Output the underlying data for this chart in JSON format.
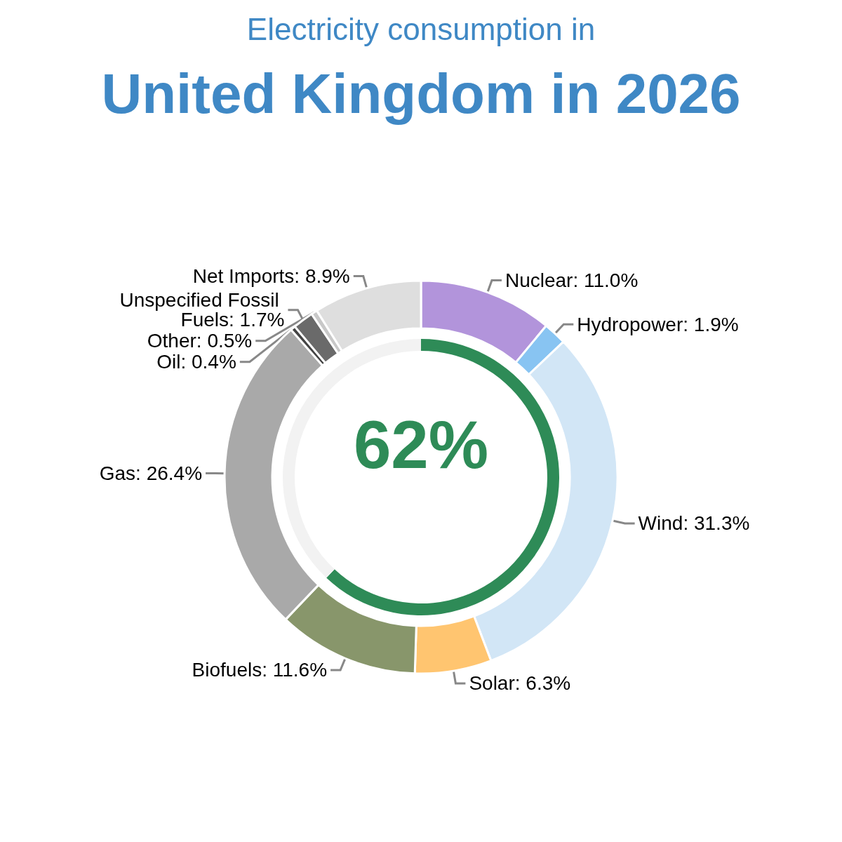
{
  "chart_data": [
    {
      "type": "donut",
      "subtitle": "Electricity consumption in",
      "title": "United Kingdom in 2026",
      "categories": [
        "Nuclear",
        "Hydropower",
        "Wind",
        "Solar",
        "Biofuels",
        "Gas",
        "Oil",
        "Unspecified Fossil Fuels",
        "Other",
        "Net Imports"
      ],
      "values": [
        11.0,
        1.9,
        31.3,
        6.3,
        11.6,
        26.4,
        0.4,
        1.7,
        0.5,
        8.9
      ],
      "value_labels": [
        "11.0%",
        "1.9%",
        "31.3%",
        "6.3%",
        "11.6%",
        "26.4%",
        "0.4%",
        "1.7%",
        "0.5%",
        "8.9%"
      ],
      "colors": [
        "#b294db",
        "#88c4f2",
        "#d2e6f6",
        "#ffc570",
        "#88966b",
        "#a9a9a9",
        "#444444",
        "#6a6a6a",
        "#c8c8c8",
        "#dedede"
      ]
    },
    {
      "type": "donut",
      "categories": [
        null,
        null
      ],
      "values": [
        62,
        38
      ],
      "colors": [
        "#2e8b57",
        "#f2f2f2"
      ],
      "annotations": [
        "62%"
      ]
    }
  ]
}
